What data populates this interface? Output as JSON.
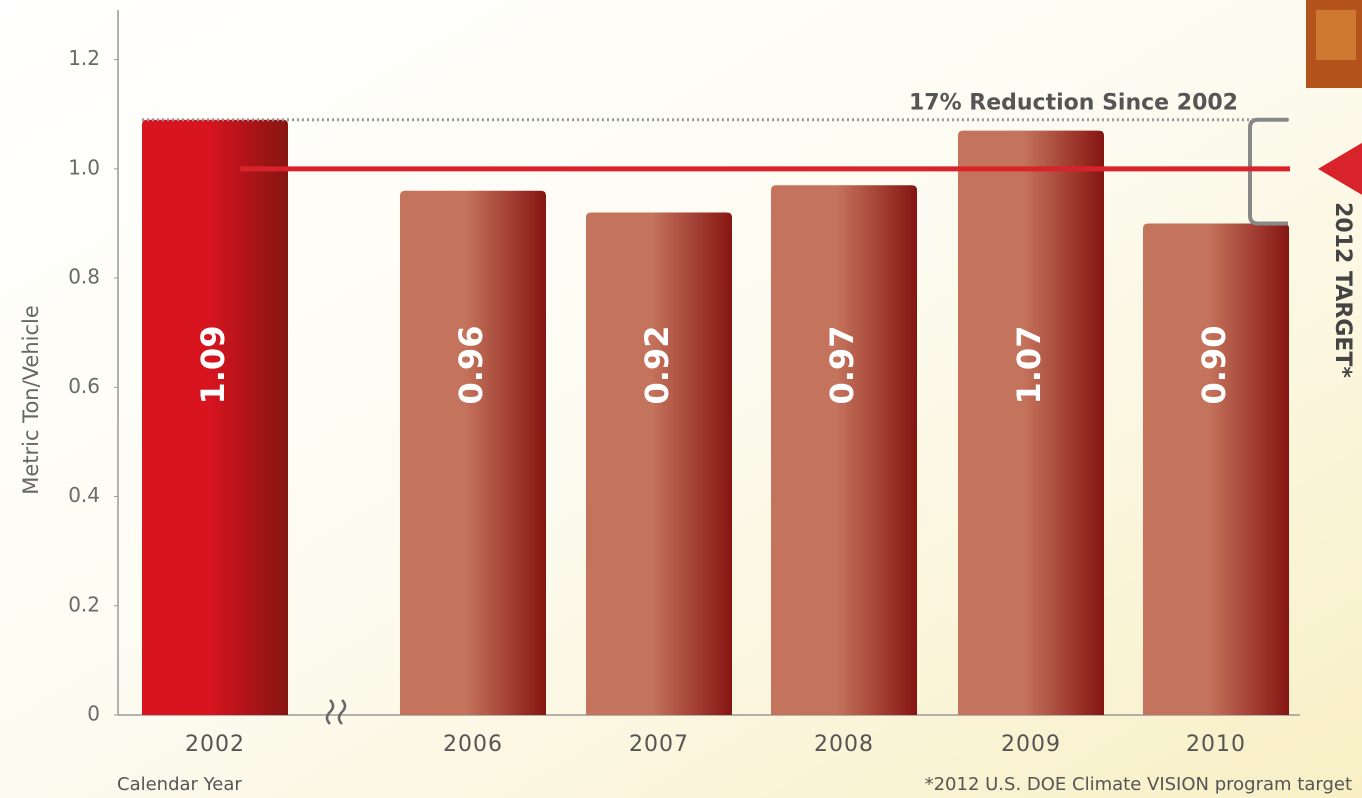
{
  "chart_data": {
    "type": "bar",
    "y_label": "Metric Ton/Vehicle",
    "x_label": "Calendar Year",
    "footnote": "*2012 U.S. DOE Climate VISION program target",
    "categories": [
      "2002",
      "2006",
      "2007",
      "2008",
      "2009",
      "2010"
    ],
    "values": [
      1.09,
      0.96,
      0.92,
      0.97,
      1.07,
      0.9
    ],
    "value_labels": [
      "1.09",
      "0.96",
      "0.92",
      "0.97",
      "1.07",
      "0.90"
    ],
    "colors": [
      "#d8141f",
      "#c4735c",
      "#c4735c",
      "#c4735c",
      "#c4735c",
      "#c4735c"
    ],
    "ylim": [
      0,
      1.3
    ],
    "yticks": [
      0,
      0.2,
      0.4,
      0.6,
      0.8,
      {
        "value": 1,
        "label": "1.0"
      },
      1.2
    ],
    "target": {
      "value": 1,
      "label": "2012 TARGET*",
      "color": "#d9232a"
    },
    "reference": {
      "value": 1.09,
      "label": "17% Reduction Since 2002"
    }
  }
}
